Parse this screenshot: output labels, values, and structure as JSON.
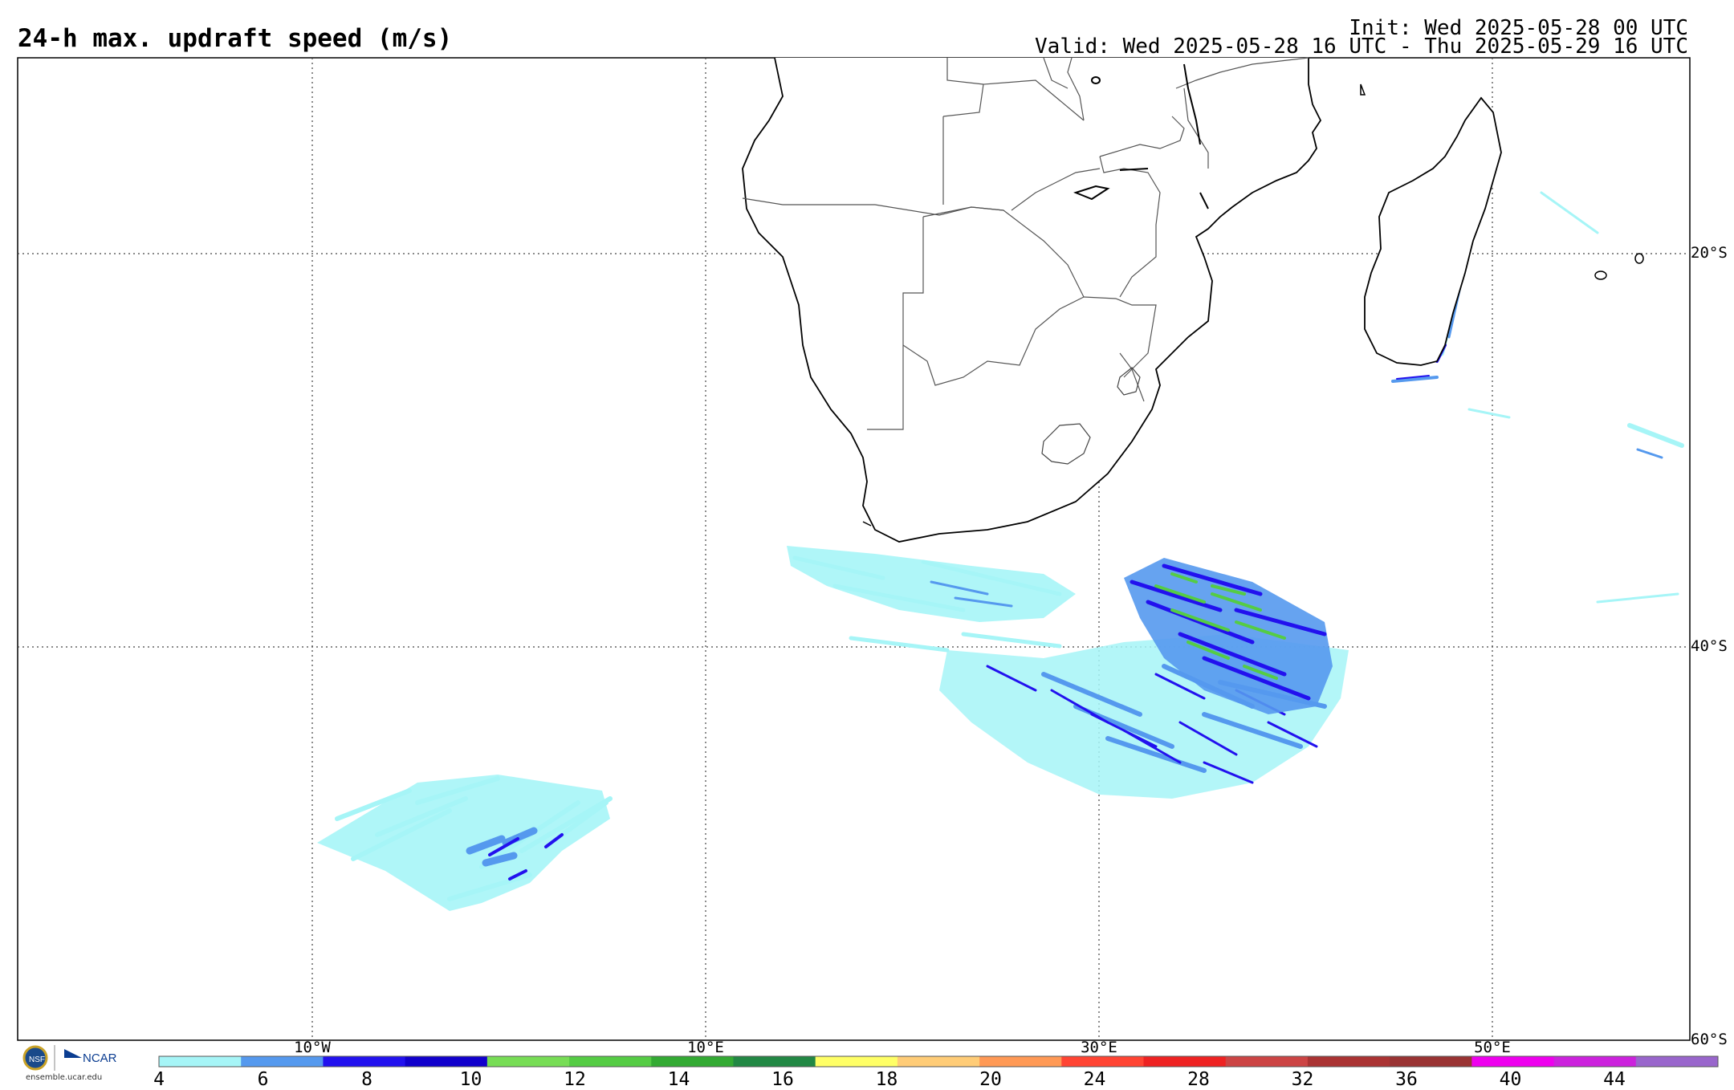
{
  "header": {
    "title": "24-h max. updraft speed (m/s)",
    "init": "Init: Wed 2025-05-28 00 UTC",
    "valid": "Valid: Wed 2025-05-28 16 UTC - Thu 2025-05-29 16 UTC"
  },
  "map": {
    "lat_labels": [
      "20°S",
      "40°S",
      "60°S"
    ],
    "lon_labels": [
      "10°W",
      "10°E",
      "30°E",
      "50°E"
    ],
    "gridlines": "dotted"
  },
  "colorbar": {
    "ticks": [
      "4",
      "6",
      "8",
      "10",
      "12",
      "14",
      "16",
      "18",
      "20",
      "24",
      "28",
      "32",
      "36",
      "40",
      "44"
    ],
    "colors": [
      "#a6f5f7",
      "#5599ee",
      "#2211ee",
      "#1100cc",
      "#77dd55",
      "#55cc44",
      "#33aa33",
      "#228844",
      "#ffff66",
      "#ffcc77",
      "#ff9955",
      "#ff4433",
      "#ee2222",
      "#cc4444",
      "#aa3333",
      "#993333",
      "#ee00ee",
      "#cc22dd",
      "#9966cc"
    ]
  },
  "logo": {
    "org": "NCAR",
    "url": "ensemble.ucar.edu"
  }
}
